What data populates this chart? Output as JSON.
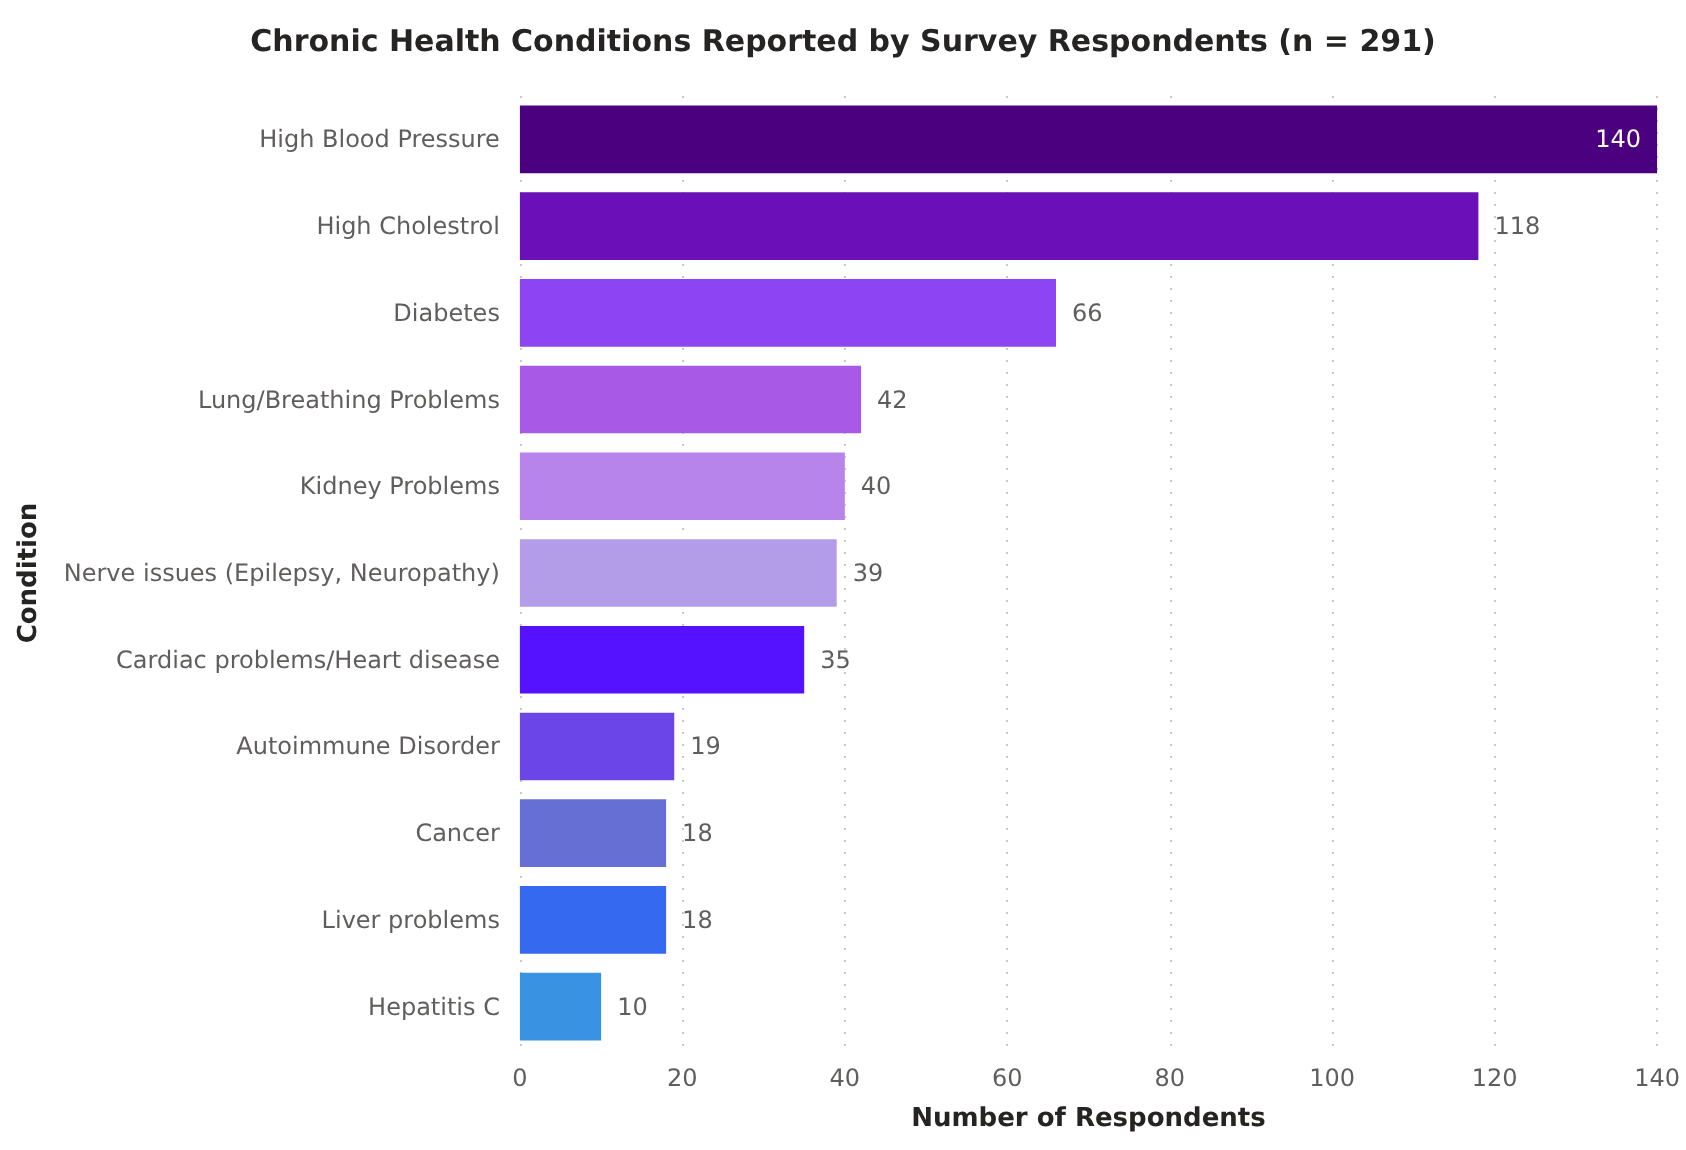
{
  "chart_data": {
    "type": "bar",
    "orientation": "horizontal",
    "title": "Chronic Health Conditions Reported by Survey Respondents (n = 291)",
    "xlabel": "Number of Respondents",
    "ylabel": "Condition",
    "categories": [
      "High Blood Pressure",
      "High Cholestrol",
      "Diabetes",
      "Lung/Breathing Problems",
      "Kidney Problems",
      "Nerve issues (Epilepsy, Neuropathy)",
      "Cardiac problems/Heart disease",
      "Autoimmune Disorder",
      "Cancer",
      "Liver problems",
      "Hepatitis C"
    ],
    "values": [
      140,
      118,
      66,
      42,
      40,
      39,
      35,
      19,
      18,
      18,
      10
    ],
    "colors": [
      "#4b007f",
      "#6b0fb8",
      "#8d44f2",
      "#a859e6",
      "#b784ec",
      "#b39de8",
      "#5512ff",
      "#6b45e8",
      "#6670d4",
      "#356af0",
      "#3a92e2"
    ],
    "xlim": [
      0,
      140
    ],
    "xticks": [
      0,
      20,
      40,
      60,
      80,
      100,
      120,
      140
    ],
    "grid": "x",
    "data_labels": true
  }
}
